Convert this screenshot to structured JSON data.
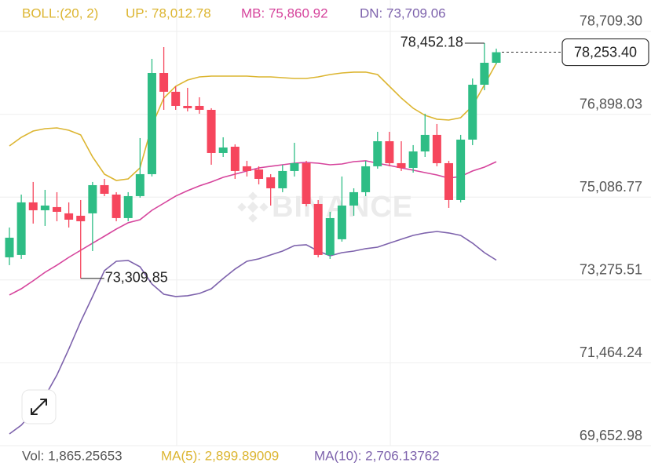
{
  "chart_data": {
    "type": "candlestick",
    "indicator": "BOLL:(20, 2)",
    "watermark": "BINANCE",
    "ylim": [
      69652.98,
      79395
    ],
    "yticks": [
      {
        "value": 78709.3,
        "label": "78,709.30"
      },
      {
        "value": 76898.03,
        "label": "76,898.03"
      },
      {
        "value": 75086.77,
        "label": "75,086.77"
      },
      {
        "value": 73275.51,
        "label": "73,275.51"
      },
      {
        "value": 71464.24,
        "label": "71,464.24"
      },
      {
        "value": 69652.98,
        "label": "69,652.98"
      }
    ],
    "grid": true,
    "up_color": "#2ebd85",
    "down_color": "#f6465d",
    "open": [
      73770,
      73822,
      74971,
      74799,
      74868,
      74731,
      74679,
      74731,
      75348,
      75142,
      74628,
      75108,
      75588,
      77800,
      77389,
      77080,
      77080,
      76994,
      76051,
      76188,
      75760,
      75691,
      75519,
      75279,
      75657,
      75828,
      74936,
      73822,
      74165,
      74902,
      75194,
      75760,
      76308,
      75828,
      75725,
      76085,
      76446,
      75828,
      75022,
      76343,
      77543,
      78023
    ],
    "high": [
      74422,
      75142,
      75417,
      75245,
      75194,
      74971,
      75022,
      75417,
      75485,
      75194,
      75194,
      76377,
      78109,
      78366,
      77509,
      77475,
      77269,
      77029,
      76394,
      76240,
      75880,
      75760,
      75588,
      75794,
      76274,
      75880,
      75022,
      74765,
      75537,
      75279,
      75880,
      76514,
      76514,
      76308,
      76223,
      76909,
      76686,
      75880,
      76446,
      77680,
      78452.18,
      78332
    ],
    "low": [
      73599,
      73736,
      74508,
      74456,
      74559,
      74422,
      73309.85,
      73907,
      75108,
      74559,
      74559,
      75074,
      75537,
      76994,
      76994,
      76960,
      76909,
      75794,
      75965,
      75485,
      75537,
      75365,
      74902,
      75194,
      75537,
      74885,
      73770,
      73736,
      74113,
      74679,
      75108,
      75708,
      75760,
      75657,
      75622,
      75965,
      75760,
      74851,
      74971,
      76223,
      77423,
      77989
    ],
    "close": [
      74199,
      74971,
      74799,
      74902,
      74765,
      74593,
      74559,
      75348,
      75159,
      74628,
      75108,
      75588,
      77800,
      77389,
      77080,
      77029,
      76994,
      76051,
      76171,
      75657,
      75657,
      75485,
      75279,
      75657,
      75828,
      74936,
      73822,
      74628,
      74902,
      75194,
      75760,
      76308,
      75828,
      75725,
      76085,
      76446,
      75828,
      75022,
      76343,
      77543,
      78023,
      78253.4
    ],
    "bands": [
      {
        "label": "UP: 78,012.78",
        "color": "#dcb530",
        "values": [
          76205,
          76394,
          76531,
          76583,
          76600,
          76548,
          76446,
          75965,
          75588,
          75451,
          75485,
          75725,
          76651,
          77252,
          77509,
          77646,
          77715,
          77732,
          77732,
          77732,
          77732,
          77715,
          77715,
          77697,
          77680,
          77680,
          77715,
          77766,
          77800,
          77818,
          77818,
          77766,
          77509,
          77252,
          77029,
          76874,
          76789,
          76771,
          76823,
          77080,
          77543,
          78012.78
        ]
      },
      {
        "label": "MB: 75,860.92",
        "color": "#d6449c",
        "values": [
          72947,
          73084,
          73256,
          73444,
          73599,
          73770,
          73924,
          74079,
          74233,
          74388,
          74525,
          74593,
          74799,
          74953,
          75108,
          75228,
          75331,
          75417,
          75519,
          75588,
          75657,
          75725,
          75760,
          75794,
          75828,
          75845,
          75828,
          75794,
          75811,
          75862,
          75880,
          75828,
          75777,
          75725,
          75674,
          75622,
          75571,
          75502,
          75537,
          75657,
          75742,
          75860.92
        ]
      },
      {
        "label": "DN: 73,709.06",
        "color": "#7d62ac",
        "values": [
          69911,
          70100,
          70392,
          70735,
          71198,
          71764,
          72364,
          72913,
          73479,
          73684,
          73702,
          73564,
          73187,
          72964,
          72913,
          72930,
          72981,
          73084,
          73307,
          73513,
          73684,
          73736,
          73822,
          73907,
          74027,
          74045,
          73907,
          73804,
          73873,
          73907,
          73959,
          73993,
          74079,
          74165,
          74250,
          74302,
          74336,
          74302,
          74250,
          74079,
          73873,
          73709.06
        ]
      }
    ],
    "annotations": {
      "high": {
        "value": 78452.18,
        "label": "78,452.18"
      },
      "low": {
        "value": 73309.85,
        "label": "73,309.85"
      },
      "last_price": {
        "value": 78253.4,
        "label": "78,253.40"
      }
    },
    "volume": [
      {
        "label": "Vol: 1,865.25653",
        "color": "#555555"
      },
      {
        "label": "MA(5): 2,899.89009",
        "color": "#dcb530"
      },
      {
        "label": "MA(10): 2,706.13762",
        "color": "#7d62ac"
      }
    ]
  }
}
